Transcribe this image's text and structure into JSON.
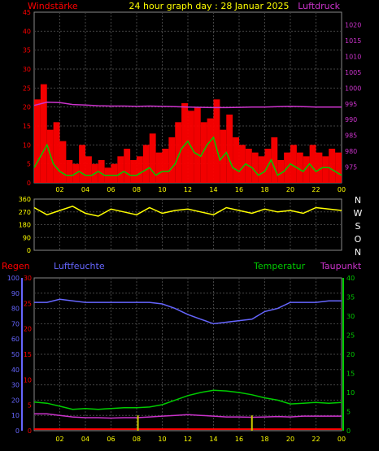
{
  "header": {
    "title": "24 hour graph day : 28 Januar 2025",
    "left_label": "Windstärke",
    "right_label": "Luftdruck"
  },
  "direction_labels": [
    "N",
    "W",
    "S",
    "O",
    "N"
  ],
  "bottom_labels": {
    "regen": "Regen",
    "luftfeuchte": "Luftfeuchte",
    "temperatur": "Temperatur",
    "taupunkt": "Taupunkt"
  },
  "colors": {
    "wind": "#ff0000",
    "gust": "#ff0000",
    "wind_avg": "#00cc00",
    "pressure": "#cc33cc",
    "direction": "#ffff00",
    "humidity": "#6666ff",
    "temperature": "#00cc00",
    "dewpoint": "#cc33cc",
    "rain": "#ff0000",
    "rain_rate": "#cccc00",
    "grid": "#444444",
    "title": "#ffff00"
  },
  "chart_data": [
    {
      "type": "bar",
      "x_unit": "hour",
      "x_ticks": [
        "02",
        "04",
        "06",
        "08",
        "10",
        "12",
        "14",
        "16",
        "18",
        "20",
        "22",
        "00"
      ],
      "left_axis": {
        "label": "Windstärke",
        "min": 0,
        "max": 45,
        "ticks": [
          0,
          5,
          10,
          15,
          20,
          25,
          30,
          35,
          40,
          45
        ]
      },
      "right_axis": {
        "label": "Luftdruck",
        "min": 970,
        "max": 1024,
        "ticks": [
          975,
          980,
          985,
          990,
          995,
          1000,
          1005,
          1010,
          1015,
          1020
        ]
      },
      "series": [
        {
          "key": "gust",
          "x": [
            0,
            0.5,
            1,
            1.5,
            2,
            2.5,
            3,
            3.5,
            4,
            4.5,
            5,
            5.5,
            6,
            6.5,
            7,
            7.5,
            8,
            8.5,
            9,
            9.5,
            10,
            10.5,
            11,
            11.5,
            12,
            12.5,
            13,
            13.5,
            14,
            14.5,
            15,
            15.5,
            16,
            16.5,
            17,
            17.5,
            18,
            18.5,
            19,
            19.5,
            20,
            20.5,
            21,
            21.5,
            22,
            22.5,
            23,
            23.5,
            24
          ],
          "y": [
            22,
            26,
            14,
            16,
            11,
            6,
            5,
            10,
            7,
            5,
            6,
            4,
            5,
            7,
            9,
            6,
            7,
            10,
            13,
            8,
            9,
            12,
            16,
            21,
            19,
            20,
            16,
            17,
            22,
            14,
            18,
            12,
            10,
            9,
            8,
            7,
            9,
            12,
            6,
            8,
            10,
            8,
            7,
            10,
            8,
            7,
            9,
            8,
            6
          ]
        },
        {
          "key": "wind_avg",
          "x": [
            0,
            0.5,
            1,
            1.5,
            2,
            2.5,
            3,
            3.5,
            4,
            4.5,
            5,
            5.5,
            6,
            6.5,
            7,
            7.5,
            8,
            8.5,
            9,
            9.5,
            10,
            10.5,
            11,
            11.5,
            12,
            12.5,
            13,
            13.5,
            14,
            14.5,
            15,
            15.5,
            16,
            16.5,
            17,
            17.5,
            18,
            18.5,
            19,
            19.5,
            20,
            20.5,
            21,
            21.5,
            22,
            22.5,
            23,
            23.5,
            24
          ],
          "y": [
            4,
            7,
            10,
            5,
            3,
            2,
            2,
            3,
            2,
            2,
            3,
            2,
            2,
            2,
            3,
            2,
            2,
            3,
            4,
            2,
            3,
            3,
            5,
            9,
            11,
            8,
            7,
            10,
            12,
            6,
            8,
            4,
            3,
            5,
            4,
            2,
            3,
            6,
            2,
            3,
            5,
            4,
            3,
            5,
            3,
            4,
            4,
            3,
            2
          ]
        },
        {
          "key": "pressure",
          "x": [
            0,
            1,
            2,
            3,
            4,
            5,
            6,
            7,
            8,
            9,
            10,
            11,
            12,
            13,
            14,
            15,
            16,
            17,
            18,
            19,
            20,
            21,
            22,
            23,
            24
          ],
          "y": [
            994.5,
            995.5,
            995.4,
            994.8,
            994.6,
            994.4,
            994.3,
            994.3,
            994.2,
            994.3,
            994.2,
            994.1,
            994.0,
            993.9,
            993.8,
            993.8,
            993.9,
            994.0,
            994.0,
            994.1,
            994.2,
            994.1,
            994.0,
            994.0,
            994.0
          ]
        }
      ]
    },
    {
      "type": "line",
      "x_unit": "hour",
      "y_axis": {
        "min": 0,
        "max": 360,
        "ticks": [
          0,
          90,
          180,
          270,
          360
        ]
      },
      "direction_labels": [
        "N",
        "W",
        "S",
        "O",
        "N"
      ],
      "series": [
        {
          "key": "direction",
          "x": [
            0,
            1,
            2,
            3,
            4,
            5,
            6,
            7,
            8,
            9,
            10,
            11,
            12,
            13,
            14,
            15,
            16,
            17,
            18,
            19,
            20,
            21,
            22,
            23,
            24
          ],
          "y": [
            300,
            250,
            280,
            310,
            260,
            240,
            290,
            270,
            250,
            300,
            260,
            280,
            290,
            270,
            250,
            300,
            280,
            260,
            290,
            270,
            280,
            260,
            300,
            290,
            280
          ]
        }
      ]
    },
    {
      "type": "line",
      "x_unit": "hour",
      "x_ticks": [
        "02",
        "04",
        "06",
        "08",
        "10",
        "12",
        "14",
        "16",
        "18",
        "20",
        "22",
        "00"
      ],
      "humidity_axis": {
        "label": "Luftfeuchte",
        "min": 0,
        "max": 100,
        "ticks": [
          0,
          10,
          20,
          30,
          40,
          50,
          60,
          70,
          80,
          90,
          100
        ]
      },
      "rain_axis": {
        "label": "Regen",
        "min": 0,
        "max": 30,
        "ticks": [
          0,
          5,
          10,
          15,
          20,
          25,
          30
        ]
      },
      "temp_axis": {
        "label": "Temperatur",
        "min": 0,
        "max": 40,
        "ticks": [
          0,
          5,
          10,
          15,
          20,
          25,
          30,
          35,
          40
        ]
      },
      "series": [
        {
          "key": "humidity",
          "x": [
            0,
            1,
            2,
            3,
            4,
            5,
            6,
            7,
            8,
            9,
            10,
            11,
            12,
            13,
            14,
            15,
            16,
            17,
            18,
            19,
            20,
            21,
            22,
            23,
            24
          ],
          "y": [
            84,
            84,
            86,
            85,
            84,
            84,
            84,
            84,
            84,
            84,
            83,
            80,
            76,
            73,
            70,
            71,
            72,
            73,
            78,
            80,
            84,
            84,
            84,
            85,
            85
          ]
        },
        {
          "key": "temperature",
          "x": [
            0,
            1,
            2,
            3,
            4,
            5,
            6,
            7,
            8,
            9,
            10,
            11,
            12,
            13,
            14,
            15,
            16,
            17,
            18,
            19,
            20,
            21,
            22,
            23,
            24
          ],
          "y": [
            7.5,
            7.2,
            6.4,
            5.6,
            5.8,
            5.6,
            5.8,
            6.0,
            6.0,
            6.2,
            6.8,
            8.0,
            9.2,
            10.0,
            10.6,
            10.4,
            10.0,
            9.4,
            8.6,
            8.0,
            7.0,
            7.2,
            7.4,
            7.2,
            7.4
          ]
        },
        {
          "key": "dewpoint",
          "x": [
            0,
            1,
            2,
            3,
            4,
            5,
            6,
            7,
            8,
            9,
            10,
            11,
            12,
            13,
            14,
            15,
            16,
            17,
            18,
            19,
            20,
            21,
            22,
            23,
            24
          ],
          "y": [
            4.4,
            4.4,
            4.0,
            3.6,
            3.4,
            3.4,
            3.3,
            3.4,
            3.4,
            3.6,
            3.8,
            4.0,
            4.2,
            4.0,
            3.8,
            3.6,
            3.6,
            3.5,
            3.6,
            3.7,
            3.6,
            3.8,
            3.8,
            3.8,
            3.8
          ]
        },
        {
          "key": "rain",
          "x": [
            0,
            24
          ],
          "y": [
            0.3,
            0.3
          ]
        },
        {
          "key": "rain_rate",
          "x": [
            8.1,
            17.0
          ],
          "y": [
            3.0,
            3.0
          ]
        }
      ]
    }
  ]
}
